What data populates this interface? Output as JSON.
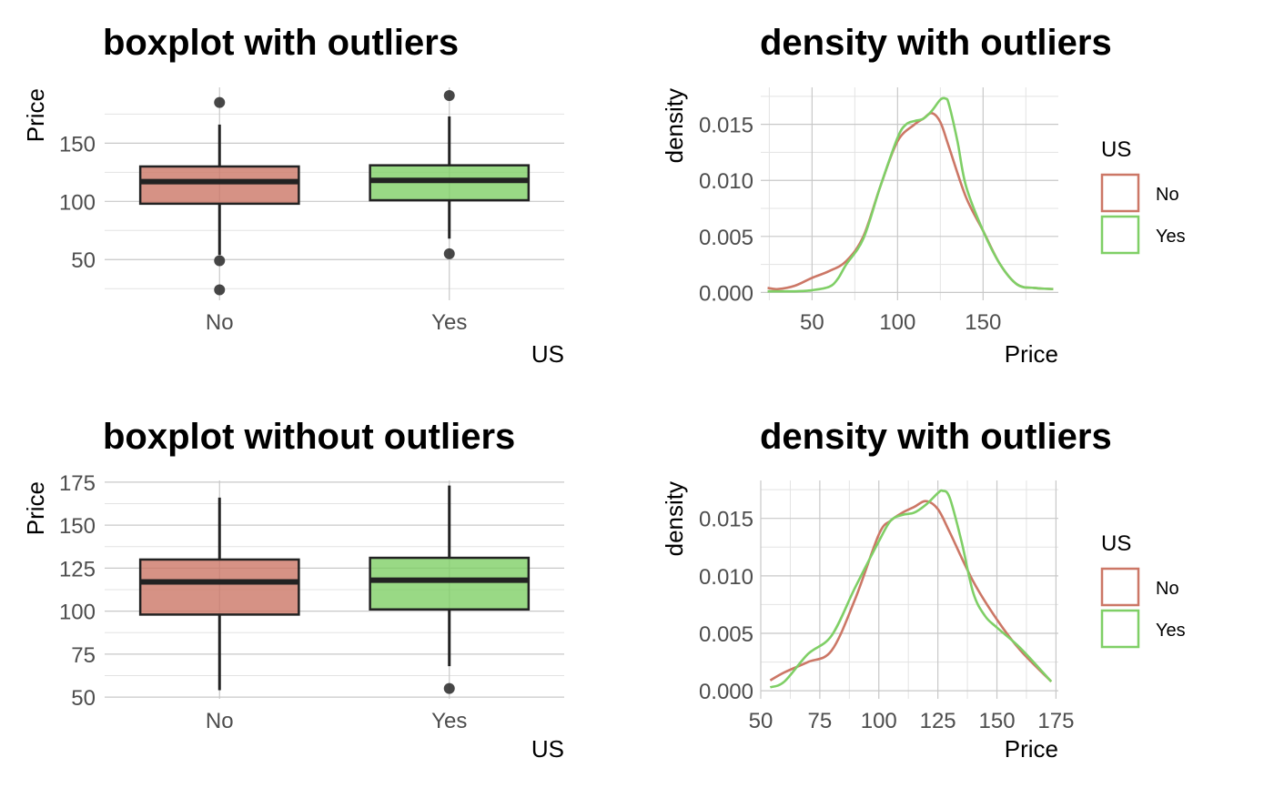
{
  "colors": {
    "No": "#cc7766",
    "Yes": "#7fcf66",
    "box_line": "#222222",
    "outlier": "#333333"
  },
  "chart_data": [
    {
      "type": "boxplot",
      "title": "boxplot with outliers",
      "xlabel": "US",
      "ylabel": "Price",
      "categories": [
        "No",
        "Yes"
      ],
      "ylim": [
        15,
        198
      ],
      "yticks": [
        50,
        100,
        150
      ],
      "yticklabels": [
        "50",
        "100",
        "150"
      ],
      "grid": true,
      "boxes": [
        {
          "name": "No",
          "lower_whisker": 54,
          "q1": 98,
          "median": 117,
          "q3": 130,
          "upper_whisker": 166,
          "outliers": [
            185,
            49,
            24
          ]
        },
        {
          "name": "Yes",
          "lower_whisker": 68,
          "q1": 101,
          "median": 118,
          "q3": 131,
          "upper_whisker": 173,
          "outliers": [
            191,
            55
          ]
        }
      ]
    },
    {
      "type": "line",
      "title": "density with outliers",
      "xlabel": "Price",
      "ylabel": "density",
      "xlim": [
        20,
        194
      ],
      "ylim": [
        -0.0007,
        0.0183
      ],
      "xticks": [
        50,
        100,
        150
      ],
      "xticklabels": [
        "50",
        "100",
        "150"
      ],
      "yticks": [
        0,
        0.005,
        0.01,
        0.015
      ],
      "yticklabels": [
        "0.000",
        "0.005",
        "0.010",
        "0.015"
      ],
      "grid": true,
      "legend": {
        "title": "US",
        "position": "right",
        "entries": [
          "No",
          "Yes"
        ]
      },
      "series": [
        {
          "name": "No",
          "x": [
            24,
            30,
            40,
            50,
            60,
            70,
            80,
            90,
            100,
            110,
            115,
            120,
            125,
            130,
            140,
            150,
            160,
            170,
            180,
            191
          ],
          "y": [
            0.0004,
            0.0003,
            0.0006,
            0.0013,
            0.0019,
            0.0028,
            0.005,
            0.0095,
            0.0135,
            0.015,
            0.0155,
            0.016,
            0.0152,
            0.013,
            0.0085,
            0.0055,
            0.0025,
            0.0007,
            0.0004,
            0.0003
          ]
        },
        {
          "name": "Yes",
          "x": [
            24,
            40,
            50,
            60,
            65,
            70,
            80,
            90,
            100,
            105,
            110,
            115,
            120,
            125,
            128,
            130,
            135,
            140,
            150,
            160,
            170,
            180,
            191
          ],
          "y": [
            0.0001,
            0.0001,
            0.0002,
            0.0005,
            0.0012,
            0.0025,
            0.0048,
            0.0095,
            0.0138,
            0.015,
            0.0153,
            0.0155,
            0.0162,
            0.0172,
            0.0173,
            0.0168,
            0.0135,
            0.0095,
            0.0055,
            0.0025,
            0.0007,
            0.0004,
            0.0003
          ]
        }
      ]
    },
    {
      "type": "boxplot",
      "title": "boxplot without outliers",
      "xlabel": "US",
      "ylabel": "Price",
      "categories": [
        "No",
        "Yes"
      ],
      "ylim": [
        49,
        176
      ],
      "yticks": [
        50,
        75,
        100,
        125,
        150,
        175
      ],
      "yticklabels": [
        "50",
        "75",
        "100",
        "125",
        "150",
        "175"
      ],
      "grid": true,
      "boxes": [
        {
          "name": "No",
          "lower_whisker": 54,
          "q1": 98,
          "median": 117,
          "q3": 130,
          "upper_whisker": 166,
          "outliers": []
        },
        {
          "name": "Yes",
          "lower_whisker": 68,
          "q1": 101,
          "median": 118,
          "q3": 131,
          "upper_whisker": 173,
          "outliers": [
            55
          ]
        }
      ]
    },
    {
      "type": "line",
      "title": "density with outliers",
      "xlabel": "Price",
      "ylabel": "density",
      "xlim": [
        50,
        176
      ],
      "ylim": [
        -0.0007,
        0.0183
      ],
      "xticks": [
        50,
        75,
        100,
        125,
        150,
        175
      ],
      "xticklabels": [
        "50",
        "75",
        "100",
        "125",
        "150",
        "175"
      ],
      "yticks": [
        0,
        0.005,
        0.01,
        0.015
      ],
      "yticklabels": [
        "0.000",
        "0.005",
        "0.010",
        "0.015"
      ],
      "grid": true,
      "legend": {
        "title": "US",
        "position": "right",
        "entries": [
          "No",
          "Yes"
        ]
      },
      "series": [
        {
          "name": "No",
          "x": [
            54,
            60,
            70,
            80,
            90,
            100,
            105,
            110,
            115,
            120,
            125,
            130,
            140,
            150,
            160,
            173
          ],
          "y": [
            0.0009,
            0.0016,
            0.0025,
            0.0035,
            0.008,
            0.0136,
            0.0148,
            0.0155,
            0.016,
            0.0165,
            0.0158,
            0.0138,
            0.0095,
            0.0062,
            0.0035,
            0.0008
          ]
        },
        {
          "name": "Yes",
          "x": [
            54,
            60,
            70,
            80,
            90,
            100,
            105,
            110,
            115,
            120,
            125,
            127,
            130,
            135,
            140,
            145,
            150,
            160,
            173
          ],
          "y": [
            0.0003,
            0.0008,
            0.0032,
            0.0048,
            0.009,
            0.013,
            0.0148,
            0.0153,
            0.0155,
            0.0162,
            0.0172,
            0.0174,
            0.0168,
            0.013,
            0.0085,
            0.0065,
            0.0055,
            0.0037,
            0.0008
          ]
        }
      ]
    }
  ]
}
